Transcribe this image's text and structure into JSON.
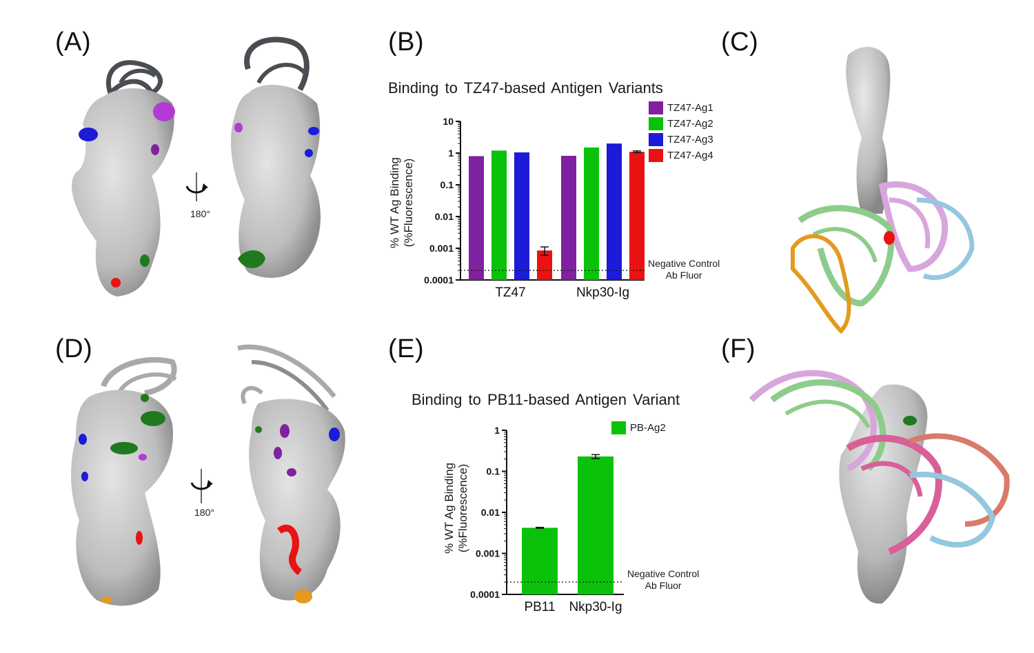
{
  "panels": {
    "a": "(A)",
    "b": "(B)",
    "c": "(C)",
    "d": "(D)",
    "e": "(E)",
    "f": "(F)"
  },
  "rotation": {
    "top": "180°",
    "bottom": "180°"
  },
  "colors": {
    "surface": "#c8c8c8",
    "surface_dark": "#8d8d8d",
    "ribbon_dark": "#4a4d52",
    "ribbon_light": "#a9a9a9",
    "purple": "#7f21a0",
    "green": "#0ac20a",
    "blue": "#1b1bd8",
    "red": "#ea1212",
    "orange": "#e39a1e",
    "dark_green": "#1f7a1f",
    "pink": "#d7a6dc",
    "light_blue": "#93c8de",
    "light_green": "#8dcc8b",
    "hot_pink": "#d95f98",
    "salmon": "#d97a6a"
  },
  "chart_data": [
    {
      "type": "bar",
      "title": "Binding to TZ47-based Antigen Variants",
      "ylabel_line1": "% WT Ag Binding",
      "ylabel_line2": "(%Fluorescence)",
      "yscale": "log",
      "ylim": [
        0.0001,
        10
      ],
      "yticks": [
        "0.0001",
        "0.001",
        "0.01",
        "0.1",
        "1",
        "10"
      ],
      "categories": [
        "TZ47",
        "Nkp30-Ig"
      ],
      "series": [
        {
          "name": "TZ47-Ag1",
          "color": "#7f21a0",
          "values": [
            0.8,
            0.82
          ]
        },
        {
          "name": "TZ47-Ag2",
          "color": "#0ac20a",
          "values": [
            1.2,
            1.5
          ]
        },
        {
          "name": "TZ47-Ag3",
          "color": "#1b1bd8",
          "values": [
            1.05,
            2.0
          ]
        },
        {
          "name": "TZ47-Ag4",
          "color": "#ea1212",
          "values": [
            0.00085,
            1.1
          ],
          "error": [
            0.00025,
            0.07
          ]
        }
      ],
      "negative_control": 0.0002,
      "negative_control_label_line1": "Negative Control",
      "negative_control_label_line2": "Ab Fluor",
      "legend": "top-right"
    },
    {
      "type": "bar",
      "title": "Binding to PB11-based Antigen Variant",
      "ylabel_line1": "% WT Ag Binding",
      "ylabel_line2": "(%Fluorescence)",
      "yscale": "log",
      "ylim": [
        0.0001,
        1
      ],
      "yticks": [
        "0.0001",
        "0.001",
        "0.01",
        "0.1",
        "1"
      ],
      "categories": [
        "PB11",
        "Nkp30-Ig"
      ],
      "series": [
        {
          "name": "PB-Ag2",
          "color": "#0ac20a",
          "values": [
            0.0042,
            0.23
          ],
          "error": [
            0.0001,
            0.025
          ]
        }
      ],
      "negative_control": 0.0002,
      "negative_control_label_line1": "Negative Control",
      "negative_control_label_line2": "Ab Fluor",
      "legend": "top-right"
    }
  ]
}
